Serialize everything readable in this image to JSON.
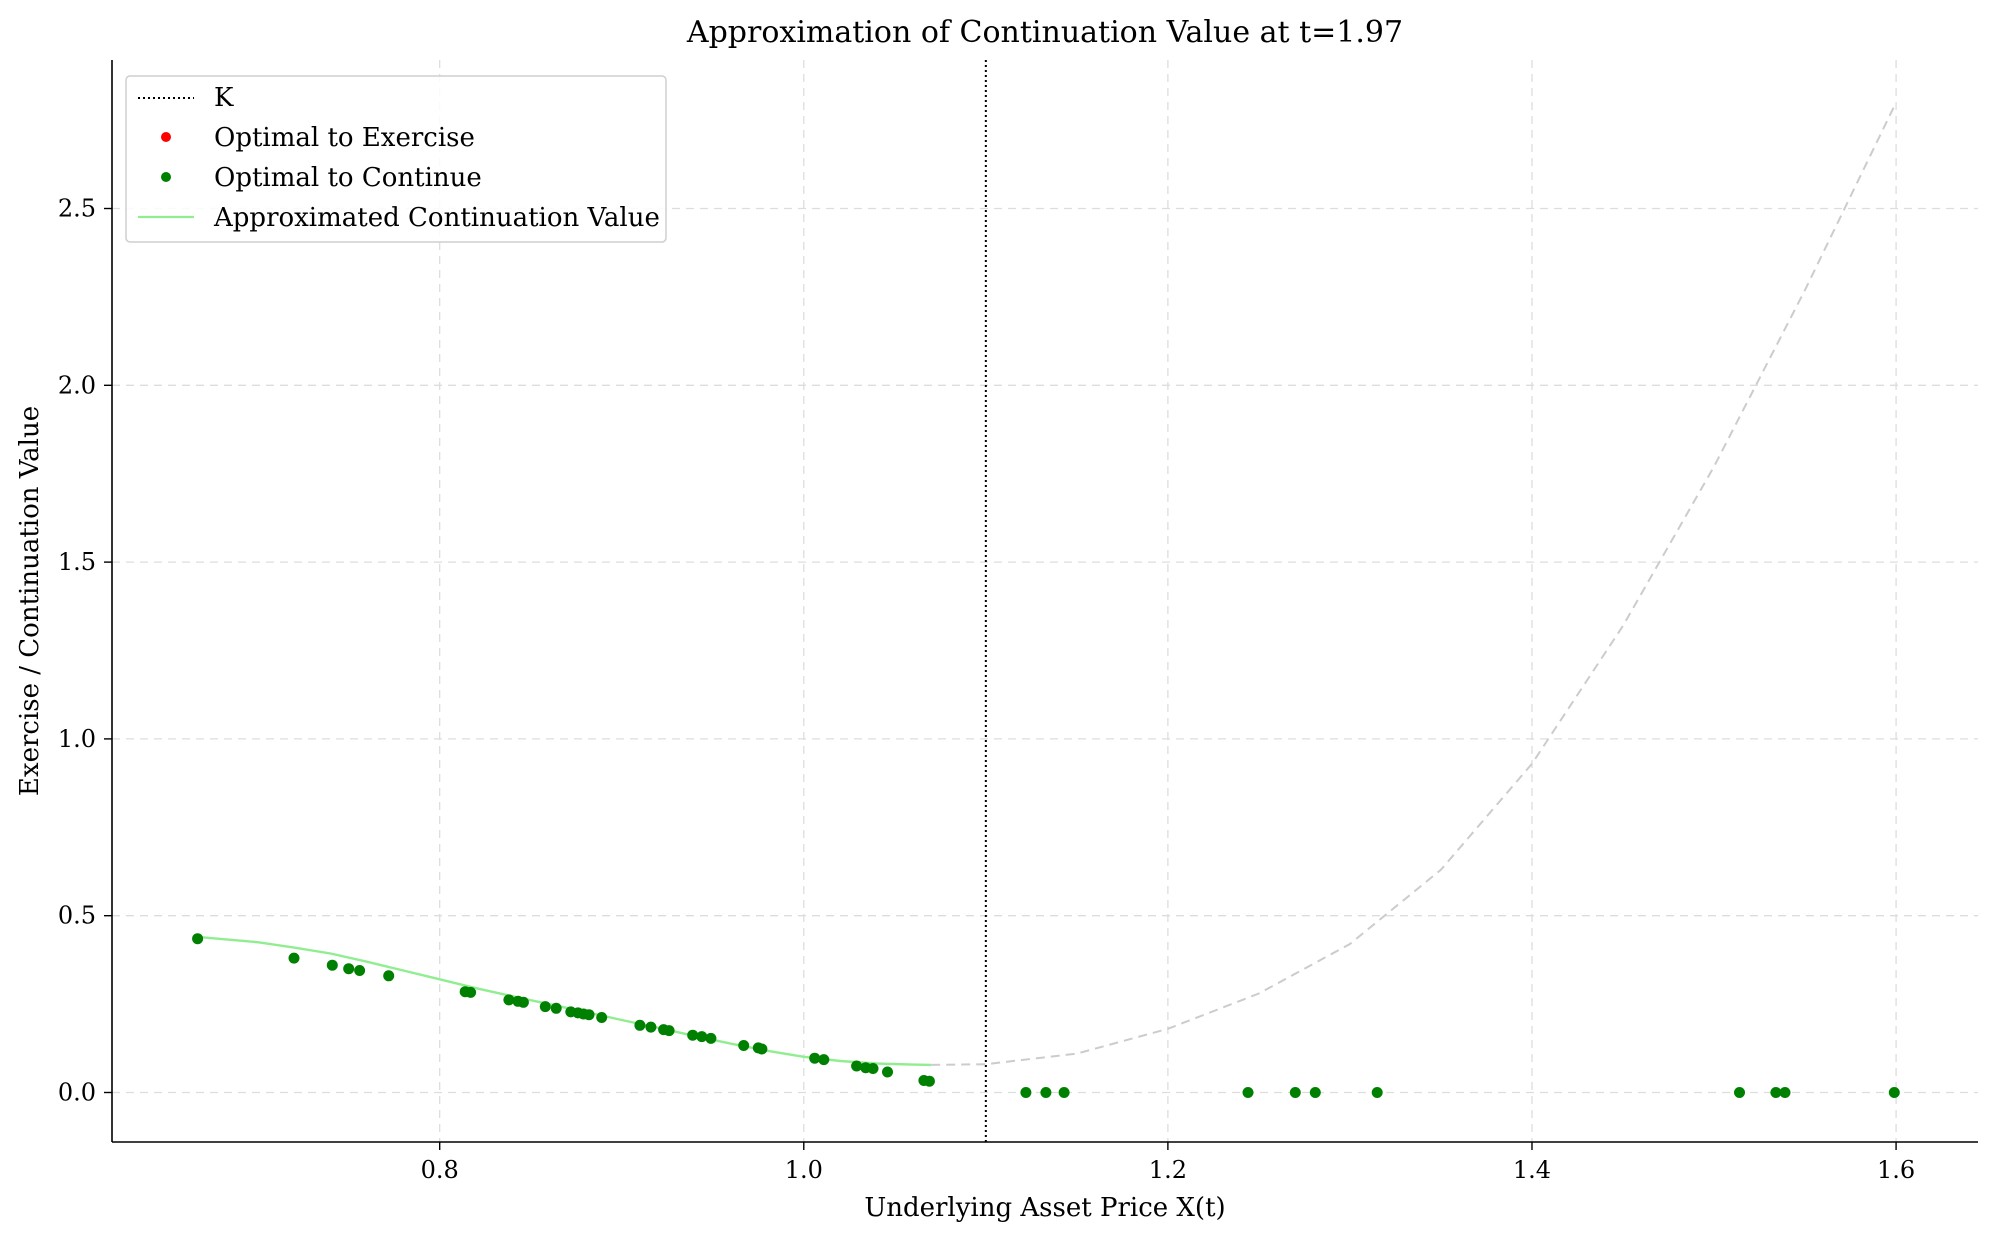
{
  "chart_data": {
    "type": "scatter",
    "title": "Approximation of Continuation Value at t=1.97",
    "xlabel": "Underlying Asset Price X(t)",
    "ylabel": "Exercise / Continuation Value",
    "xlim": [
      0.62,
      1.645
    ],
    "ylim": [
      -0.14,
      2.92
    ],
    "xticks": [
      0.8,
      1.0,
      1.2,
      1.4,
      1.6
    ],
    "xtick_labels": [
      "0.8",
      "1.0",
      "1.2",
      "1.4",
      "1.6"
    ],
    "yticks": [
      0.0,
      0.5,
      1.0,
      1.5,
      2.0,
      2.5
    ],
    "ytick_labels": [
      "0.0",
      "0.5",
      "1.0",
      "1.5",
      "2.0",
      "2.5"
    ],
    "grid": true,
    "legend_position": "top-left",
    "strike": {
      "name": "K",
      "x": 1.1,
      "color": "#000000"
    },
    "series": [
      {
        "name": "Optimal to Exercise",
        "kind": "scatter",
        "color": "#ff0000",
        "points": []
      },
      {
        "name": "Optimal to Continue",
        "kind": "scatter",
        "color": "#008000",
        "points": [
          [
            0.667,
            0.435
          ],
          [
            0.72,
            0.38
          ],
          [
            0.741,
            0.36
          ],
          [
            0.75,
            0.35
          ],
          [
            0.756,
            0.345
          ],
          [
            0.772,
            0.33
          ],
          [
            0.814,
            0.285
          ],
          [
            0.817,
            0.283
          ],
          [
            0.838,
            0.262
          ],
          [
            0.843,
            0.258
          ],
          [
            0.846,
            0.255
          ],
          [
            0.858,
            0.243
          ],
          [
            0.864,
            0.238
          ],
          [
            0.872,
            0.228
          ],
          [
            0.876,
            0.225
          ],
          [
            0.879,
            0.222
          ],
          [
            0.882,
            0.22
          ],
          [
            0.889,
            0.212
          ],
          [
            0.91,
            0.19
          ],
          [
            0.916,
            0.185
          ],
          [
            0.923,
            0.178
          ],
          [
            0.926,
            0.175
          ],
          [
            0.939,
            0.162
          ],
          [
            0.944,
            0.158
          ],
          [
            0.949,
            0.153
          ],
          [
            0.967,
            0.133
          ],
          [
            0.975,
            0.126
          ],
          [
            0.977,
            0.123
          ],
          [
            1.006,
            0.097
          ],
          [
            1.011,
            0.093
          ],
          [
            1.029,
            0.075
          ],
          [
            1.034,
            0.07
          ],
          [
            1.038,
            0.068
          ],
          [
            1.046,
            0.058
          ],
          [
            1.066,
            0.034
          ],
          [
            1.069,
            0.032
          ],
          [
            1.122,
            0.0
          ],
          [
            1.133,
            0.0
          ],
          [
            1.143,
            0.0
          ],
          [
            1.244,
            0.0
          ],
          [
            1.27,
            0.0
          ],
          [
            1.281,
            0.0
          ],
          [
            1.315,
            0.0
          ],
          [
            1.514,
            0.0
          ],
          [
            1.534,
            0.0
          ],
          [
            1.539,
            0.0
          ],
          [
            1.599,
            0.0
          ]
        ]
      },
      {
        "name": "Approximated Continuation Value",
        "kind": "line",
        "color": "#90ee90",
        "points": [
          [
            0.667,
            0.44
          ],
          [
            0.7,
            0.425
          ],
          [
            0.72,
            0.41
          ],
          [
            0.74,
            0.393
          ],
          [
            0.76,
            0.37
          ],
          [
            0.78,
            0.345
          ],
          [
            0.8,
            0.32
          ],
          [
            0.82,
            0.295
          ],
          [
            0.84,
            0.272
          ],
          [
            0.86,
            0.25
          ],
          [
            0.88,
            0.228
          ],
          [
            0.9,
            0.205
          ],
          [
            0.92,
            0.183
          ],
          [
            0.94,
            0.16
          ],
          [
            0.96,
            0.138
          ],
          [
            0.98,
            0.118
          ],
          [
            1.0,
            0.101
          ],
          [
            1.02,
            0.089
          ],
          [
            1.04,
            0.082
          ],
          [
            1.06,
            0.079
          ],
          [
            1.07,
            0.078
          ]
        ]
      },
      {
        "kind": "dashed-line",
        "color": "#cccccc",
        "points": [
          [
            1.07,
            0.078
          ],
          [
            1.1,
            0.08
          ],
          [
            1.15,
            0.11
          ],
          [
            1.2,
            0.18
          ],
          [
            1.25,
            0.28
          ],
          [
            1.3,
            0.42
          ],
          [
            1.35,
            0.63
          ],
          [
            1.4,
            0.93
          ],
          [
            1.45,
            1.32
          ],
          [
            1.5,
            1.77
          ],
          [
            1.55,
            2.27
          ],
          [
            1.6,
            2.8
          ]
        ]
      }
    ]
  }
}
